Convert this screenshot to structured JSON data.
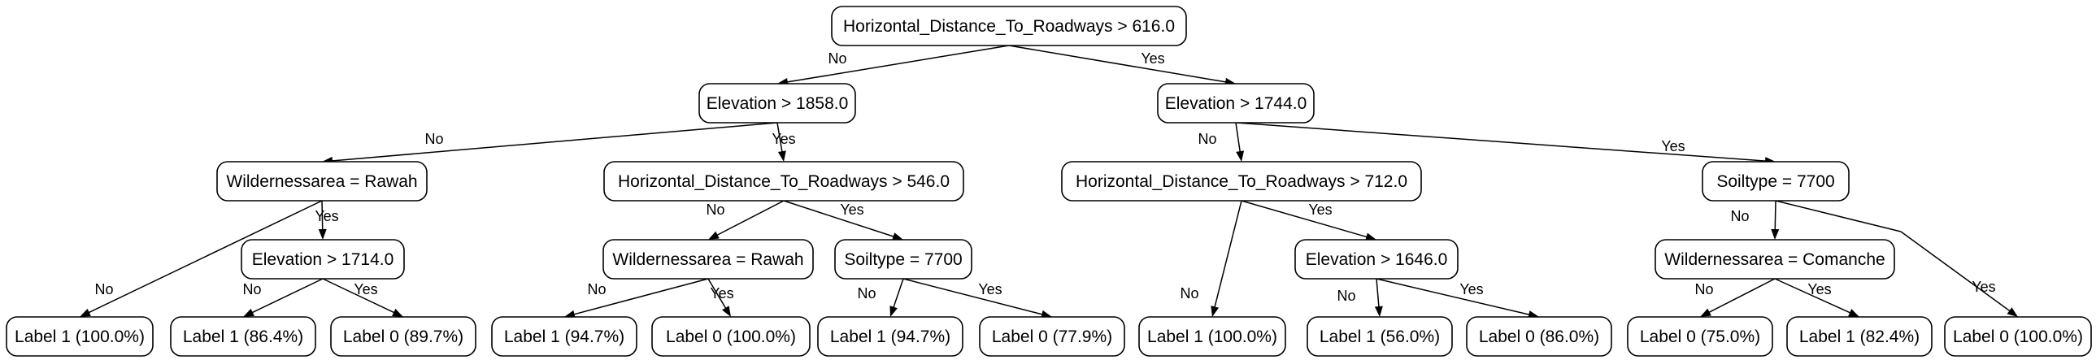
{
  "tree": {
    "nodes": [
      {
        "id": "root",
        "label": "Horizontal_Distance_To_Roadways > 616.0"
      },
      {
        "id": "l",
        "label": "Elevation > 1858.0"
      },
      {
        "id": "r",
        "label": "Elevation > 1744.0"
      },
      {
        "id": "ll",
        "label": "Wildernessarea = Rawah"
      },
      {
        "id": "lr",
        "label": "Horizontal_Distance_To_Roadways > 546.0"
      },
      {
        "id": "rl",
        "label": "Horizontal_Distance_To_Roadways > 712.0"
      },
      {
        "id": "rr",
        "label": "Soiltype = 7700"
      },
      {
        "id": "llr",
        "label": "Elevation > 1714.0"
      },
      {
        "id": "lrl",
        "label": "Wildernessarea = Rawah"
      },
      {
        "id": "lrr",
        "label": "Soiltype = 7700"
      },
      {
        "id": "rlr",
        "label": "Elevation > 1646.0"
      },
      {
        "id": "rrl",
        "label": "Wildernessarea = Comanche"
      },
      {
        "id": "f1",
        "label": "Label 1 (100.0%)"
      },
      {
        "id": "f2",
        "label": "Label 1 (86.4%)"
      },
      {
        "id": "f3",
        "label": "Label 0 (89.7%)"
      },
      {
        "id": "f4",
        "label": "Label 1 (94.7%)"
      },
      {
        "id": "f5",
        "label": "Label 0 (100.0%)"
      },
      {
        "id": "f6",
        "label": "Label 1 (94.7%)"
      },
      {
        "id": "f7",
        "label": "Label 0 (77.9%)"
      },
      {
        "id": "f8",
        "label": "Label 1 (100.0%)"
      },
      {
        "id": "f9",
        "label": "Label 1 (56.0%)"
      },
      {
        "id": "f10",
        "label": "Label 0 (86.0%)"
      },
      {
        "id": "f11",
        "label": "Label 0 (75.0%)"
      },
      {
        "id": "f12",
        "label": "Label 1 (82.4%)"
      },
      {
        "id": "f13",
        "label": "Label 0 (100.0%)"
      }
    ],
    "edges": [
      {
        "from": "root",
        "to": "l",
        "label": "No"
      },
      {
        "from": "root",
        "to": "r",
        "label": "Yes"
      },
      {
        "from": "l",
        "to": "ll",
        "label": "No"
      },
      {
        "from": "l",
        "to": "lr",
        "label": "Yes"
      },
      {
        "from": "r",
        "to": "rl",
        "label": "No"
      },
      {
        "from": "r",
        "to": "rr",
        "label": "Yes"
      },
      {
        "from": "ll",
        "to": "f1",
        "label": "No"
      },
      {
        "from": "ll",
        "to": "llr",
        "label": "Yes"
      },
      {
        "from": "llr",
        "to": "f2",
        "label": "No"
      },
      {
        "from": "llr",
        "to": "f3",
        "label": "Yes"
      },
      {
        "from": "lr",
        "to": "lrl",
        "label": "No"
      },
      {
        "from": "lr",
        "to": "lrr",
        "label": "Yes"
      },
      {
        "from": "lrl",
        "to": "f4",
        "label": "No"
      },
      {
        "from": "lrl",
        "to": "f5",
        "label": "Yes"
      },
      {
        "from": "lrr",
        "to": "f6",
        "label": "No"
      },
      {
        "from": "lrr",
        "to": "f7",
        "label": "Yes"
      },
      {
        "from": "rl",
        "to": "f8",
        "label": "No"
      },
      {
        "from": "rl",
        "to": "rlr",
        "label": "Yes"
      },
      {
        "from": "rlr",
        "to": "f9",
        "label": "No"
      },
      {
        "from": "rlr",
        "to": "f10",
        "label": "Yes"
      },
      {
        "from": "rr",
        "to": "rrl",
        "label": "No"
      },
      {
        "from": "rr",
        "to": "f13",
        "label": "Yes"
      },
      {
        "from": "rrl",
        "to": "f11",
        "label": "No"
      },
      {
        "from": "rrl",
        "to": "f12",
        "label": "Yes"
      }
    ]
  }
}
